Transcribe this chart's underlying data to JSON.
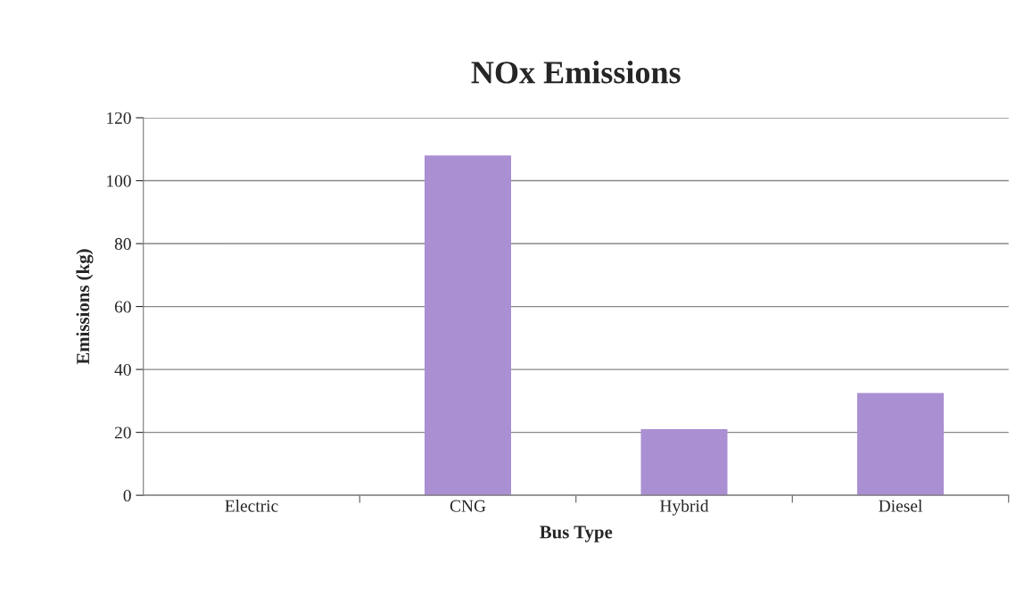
{
  "chart_data": {
    "type": "bar",
    "title": "NOx Emissions",
    "xlabel": "Bus Type",
    "ylabel": "Emissions (kg)",
    "categories": [
      "Electric",
      "CNG",
      "Hybrid",
      "Diesel"
    ],
    "values": [
      0,
      108,
      21,
      32.5
    ],
    "color": "#aa8fd2",
    "ylim": [
      0,
      120
    ],
    "yticks": [
      0,
      20,
      40,
      60,
      80,
      100,
      120
    ],
    "grid": "y"
  }
}
